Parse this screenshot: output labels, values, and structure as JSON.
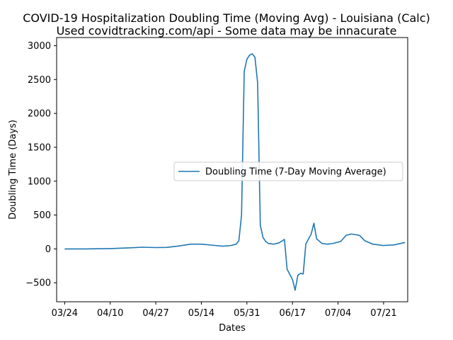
{
  "chart_data": {
    "type": "line",
    "title": "COVID-19 Hospitalization Doubling Time (Moving Avg) - Louisiana (Calc)",
    "subtitle": "Used covidtracking.com/api - Some data may be innacurate",
    "xlabel": "Dates",
    "ylabel": "Doubling Time (Days)",
    "ylim": [
      -780,
      3120
    ],
    "xlim": [
      "03/21",
      "07/30"
    ],
    "x_ticks": [
      "03/24",
      "04/10",
      "04/27",
      "05/14",
      "05/31",
      "06/17",
      "07/04",
      "07/21"
    ],
    "y_ticks": [
      -500,
      0,
      500,
      1000,
      1500,
      2000,
      2500,
      3000
    ],
    "grid": false,
    "legend_position": "center-right",
    "colors": {
      "line": "#1f77b4"
    },
    "series": [
      {
        "name": "Doubling Time (7-Day Moving Average)",
        "points": [
          [
            "03/24",
            0
          ],
          [
            "04/01",
            0
          ],
          [
            "04/10",
            5
          ],
          [
            "04/17",
            15
          ],
          [
            "04/22",
            25
          ],
          [
            "04/27",
            20
          ],
          [
            "05/01",
            22
          ],
          [
            "05/05",
            40
          ],
          [
            "05/10",
            70
          ],
          [
            "05/14",
            70
          ],
          [
            "05/18",
            55
          ],
          [
            "05/22",
            40
          ],
          [
            "05/25",
            50
          ],
          [
            "05/27",
            70
          ],
          [
            "05/28",
            120
          ],
          [
            "05/29",
            500
          ],
          [
            "05/30",
            2620
          ],
          [
            "05/31",
            2800
          ],
          [
            "06/01",
            2860
          ],
          [
            "06/02",
            2880
          ],
          [
            "06/03",
            2830
          ],
          [
            "06/04",
            2450
          ],
          [
            "06/05",
            350
          ],
          [
            "06/06",
            170
          ],
          [
            "06/07",
            110
          ],
          [
            "06/08",
            80
          ],
          [
            "06/10",
            70
          ],
          [
            "06/12",
            90
          ],
          [
            "06/14",
            140
          ],
          [
            "06/15",
            -300
          ],
          [
            "06/17",
            -450
          ],
          [
            "06/18",
            -610
          ],
          [
            "06/19",
            -390
          ],
          [
            "06/20",
            -360
          ],
          [
            "06/21",
            -370
          ],
          [
            "06/22",
            75
          ],
          [
            "06/24",
            220
          ],
          [
            "06/25",
            380
          ],
          [
            "06/26",
            150
          ],
          [
            "06/28",
            80
          ],
          [
            "06/30",
            70
          ],
          [
            "07/02",
            80
          ],
          [
            "07/05",
            110
          ],
          [
            "07/07",
            200
          ],
          [
            "07/09",
            220
          ],
          [
            "07/12",
            200
          ],
          [
            "07/14",
            120
          ],
          [
            "07/17",
            70
          ],
          [
            "07/21",
            50
          ],
          [
            "07/25",
            60
          ],
          [
            "07/29",
            95
          ]
        ]
      }
    ]
  }
}
